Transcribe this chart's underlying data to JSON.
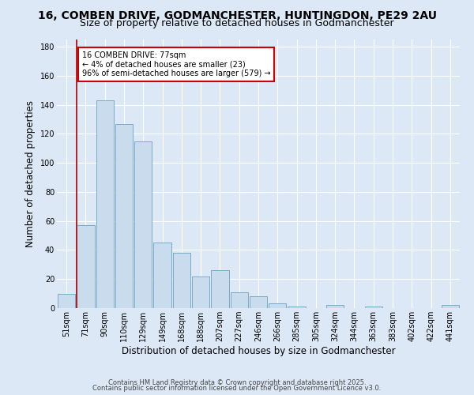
{
  "title": "16, COMBEN DRIVE, GODMANCHESTER, HUNTINGDON, PE29 2AU",
  "subtitle": "Size of property relative to detached houses in Godmanchester",
  "xlabel": "Distribution of detached houses by size in Godmanchester",
  "ylabel": "Number of detached properties",
  "bar_labels": [
    "51sqm",
    "71sqm",
    "90sqm",
    "110sqm",
    "129sqm",
    "149sqm",
    "168sqm",
    "188sqm",
    "207sqm",
    "227sqm",
    "246sqm",
    "266sqm",
    "285sqm",
    "305sqm",
    "324sqm",
    "344sqm",
    "363sqm",
    "383sqm",
    "402sqm",
    "422sqm",
    "441sqm"
  ],
  "bar_values": [
    10,
    57,
    143,
    127,
    115,
    45,
    38,
    22,
    26,
    11,
    8,
    3,
    1,
    0,
    2,
    0,
    1,
    0,
    0,
    0,
    2
  ],
  "bar_color": "#c8dcee",
  "bar_edge_color": "#7aaac8",
  "vline_color": "#aa0000",
  "ylim": [
    0,
    185
  ],
  "yticks": [
    0,
    20,
    40,
    60,
    80,
    100,
    120,
    140,
    160,
    180
  ],
  "annotation_text": "16 COMBEN DRIVE: 77sqm\n← 4% of detached houses are smaller (23)\n96% of semi-detached houses are larger (579) →",
  "annotation_box_color": "#ffffff",
  "annotation_box_edge": "#cc0000",
  "footer1": "Contains HM Land Registry data © Crown copyright and database right 2025.",
  "footer2": "Contains public sector information licensed under the Open Government Licence v3.0.",
  "bg_color": "#dce8f5",
  "grid_color": "#ffffff",
  "title_fontsize": 10,
  "subtitle_fontsize": 9,
  "axis_label_fontsize": 8.5,
  "tick_fontsize": 7,
  "annotation_fontsize": 7,
  "footer_fontsize": 6
}
